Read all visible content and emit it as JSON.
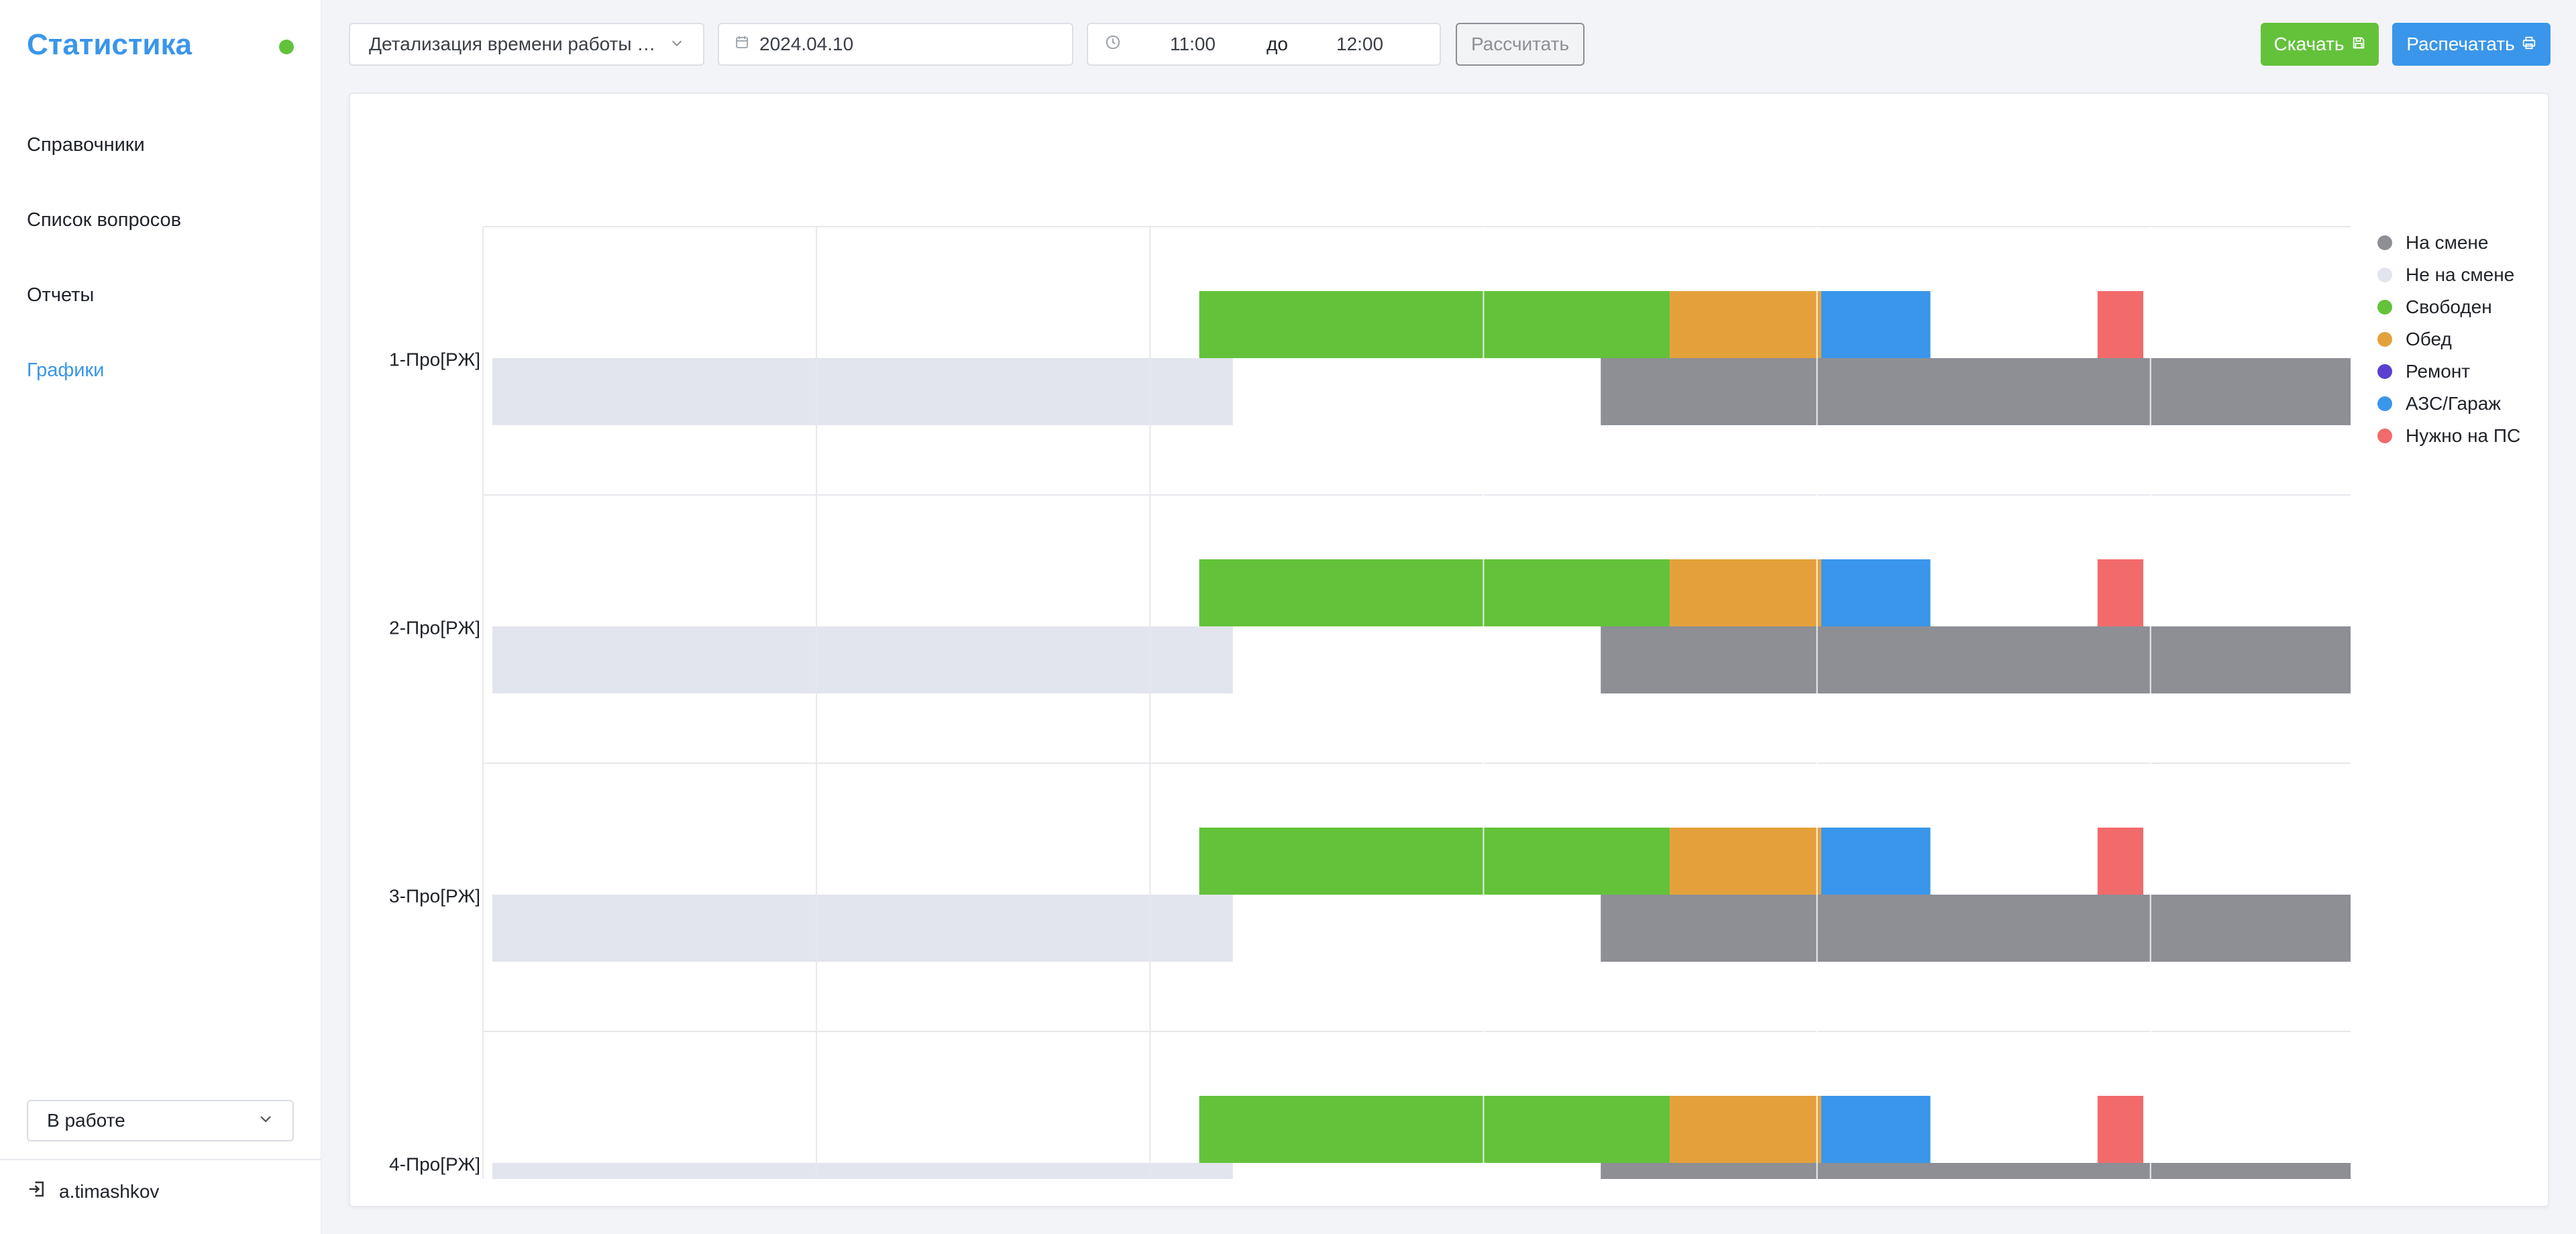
{
  "sidebar": {
    "title": "Статистика",
    "status_color": "#63c23a",
    "nav": [
      {
        "label": "Справочники",
        "active": false
      },
      {
        "label": "Список вопросов",
        "active": false
      },
      {
        "label": "Отчеты",
        "active": false
      },
      {
        "label": "Графики",
        "active": true
      }
    ],
    "status_select": "В работе",
    "user": "a.timashkov"
  },
  "toolbar": {
    "report_select": "Детализация времени работы бригад",
    "date": "2024.04.10",
    "time_from": "11:00",
    "time_sep": "до",
    "time_to": "12:00",
    "calculate_label": "Рассчитать",
    "download_label": "Скачать",
    "print_label": "Распечатать"
  },
  "chart_data": {
    "type": "timeline",
    "categories": [
      "1-Про[РЖ]",
      "2-Про[РЖ]",
      "3-Про[РЖ]",
      "4-Про[РЖ]"
    ],
    "series": [
      {
        "name": "На смене",
        "color": "#8d8f95"
      },
      {
        "name": "Не на смене",
        "color": "#e2e5ed"
      },
      {
        "name": "Свободен",
        "color": "#63c23a"
      },
      {
        "name": "Обед",
        "color": "#e4a13b"
      },
      {
        "name": "Ремонт",
        "color": "#5b3fcf"
      },
      {
        "name": "АЗС/Гараж",
        "color": "#3a96ea"
      },
      {
        "name": "Нужно на ПС",
        "color": "#f26b6b"
      }
    ],
    "bars_per_row": [
      {
        "status": "Свободен",
        "start": 0.3835,
        "end": 0.6355,
        "lane": "upper"
      },
      {
        "status": "Обед",
        "start": 0.6355,
        "end": 0.7165,
        "lane": "upper"
      },
      {
        "status": "АЗС/Гараж",
        "start": 0.7165,
        "end": 0.775,
        "lane": "upper"
      },
      {
        "status": "Нужно на ПС",
        "start": 0.8645,
        "end": 0.889,
        "lane": "upper"
      },
      {
        "status": "Не на смене",
        "start": 0.005,
        "end": 0.4015,
        "lane": "lower"
      },
      {
        "status": "На смене",
        "start": 0.5985,
        "end": 1.0,
        "lane": "lower"
      }
    ],
    "legend_position": "right",
    "grid": true
  }
}
